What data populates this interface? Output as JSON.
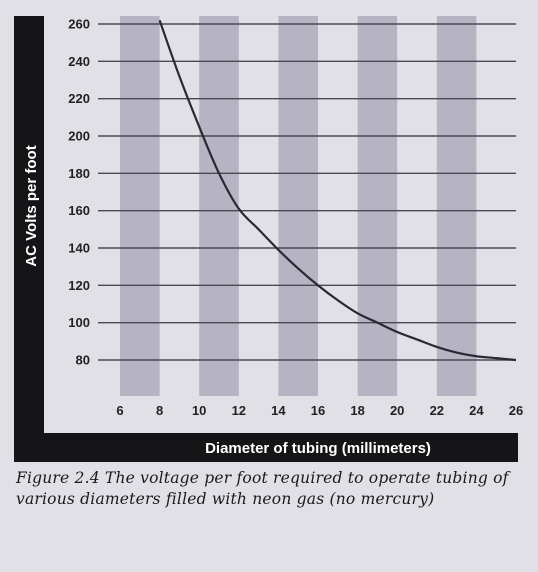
{
  "figure": {
    "caption": "Figure 2.4 The voltage per foot required to operate tubing of various diameters filled with neon gas (no mercury)",
    "colors": {
      "background": "#e2e0e7",
      "band": "#b6b3c3",
      "frame": "#151417",
      "curve": "#2a2830",
      "grid": "#4a4852"
    }
  },
  "chart_data": {
    "type": "line",
    "xlabel": "Diameter of tubing (millimeters)",
    "ylabel": "AC Volts per foot",
    "xlim": [
      6,
      26
    ],
    "ylim": [
      68,
      262
    ],
    "x_ticks": [
      "6",
      "8",
      "10",
      "12",
      "14",
      "16",
      "18",
      "20",
      "22",
      "24",
      "26"
    ],
    "y_ticks": [
      "80",
      "100",
      "120",
      "140",
      "160",
      "180",
      "200",
      "220",
      "240",
      "260"
    ],
    "grid": true,
    "series": [
      {
        "x": [
          8,
          9,
          10,
          11,
          12,
          13,
          14,
          15,
          16,
          17,
          18,
          19,
          20,
          21,
          22,
          23,
          24,
          25,
          26
        ],
        "values": [
          262,
          232,
          205,
          180,
          161,
          150,
          139,
          129,
          120,
          112,
          105,
          100,
          95,
          91,
          87,
          84,
          82,
          81,
          80
        ]
      }
    ]
  }
}
